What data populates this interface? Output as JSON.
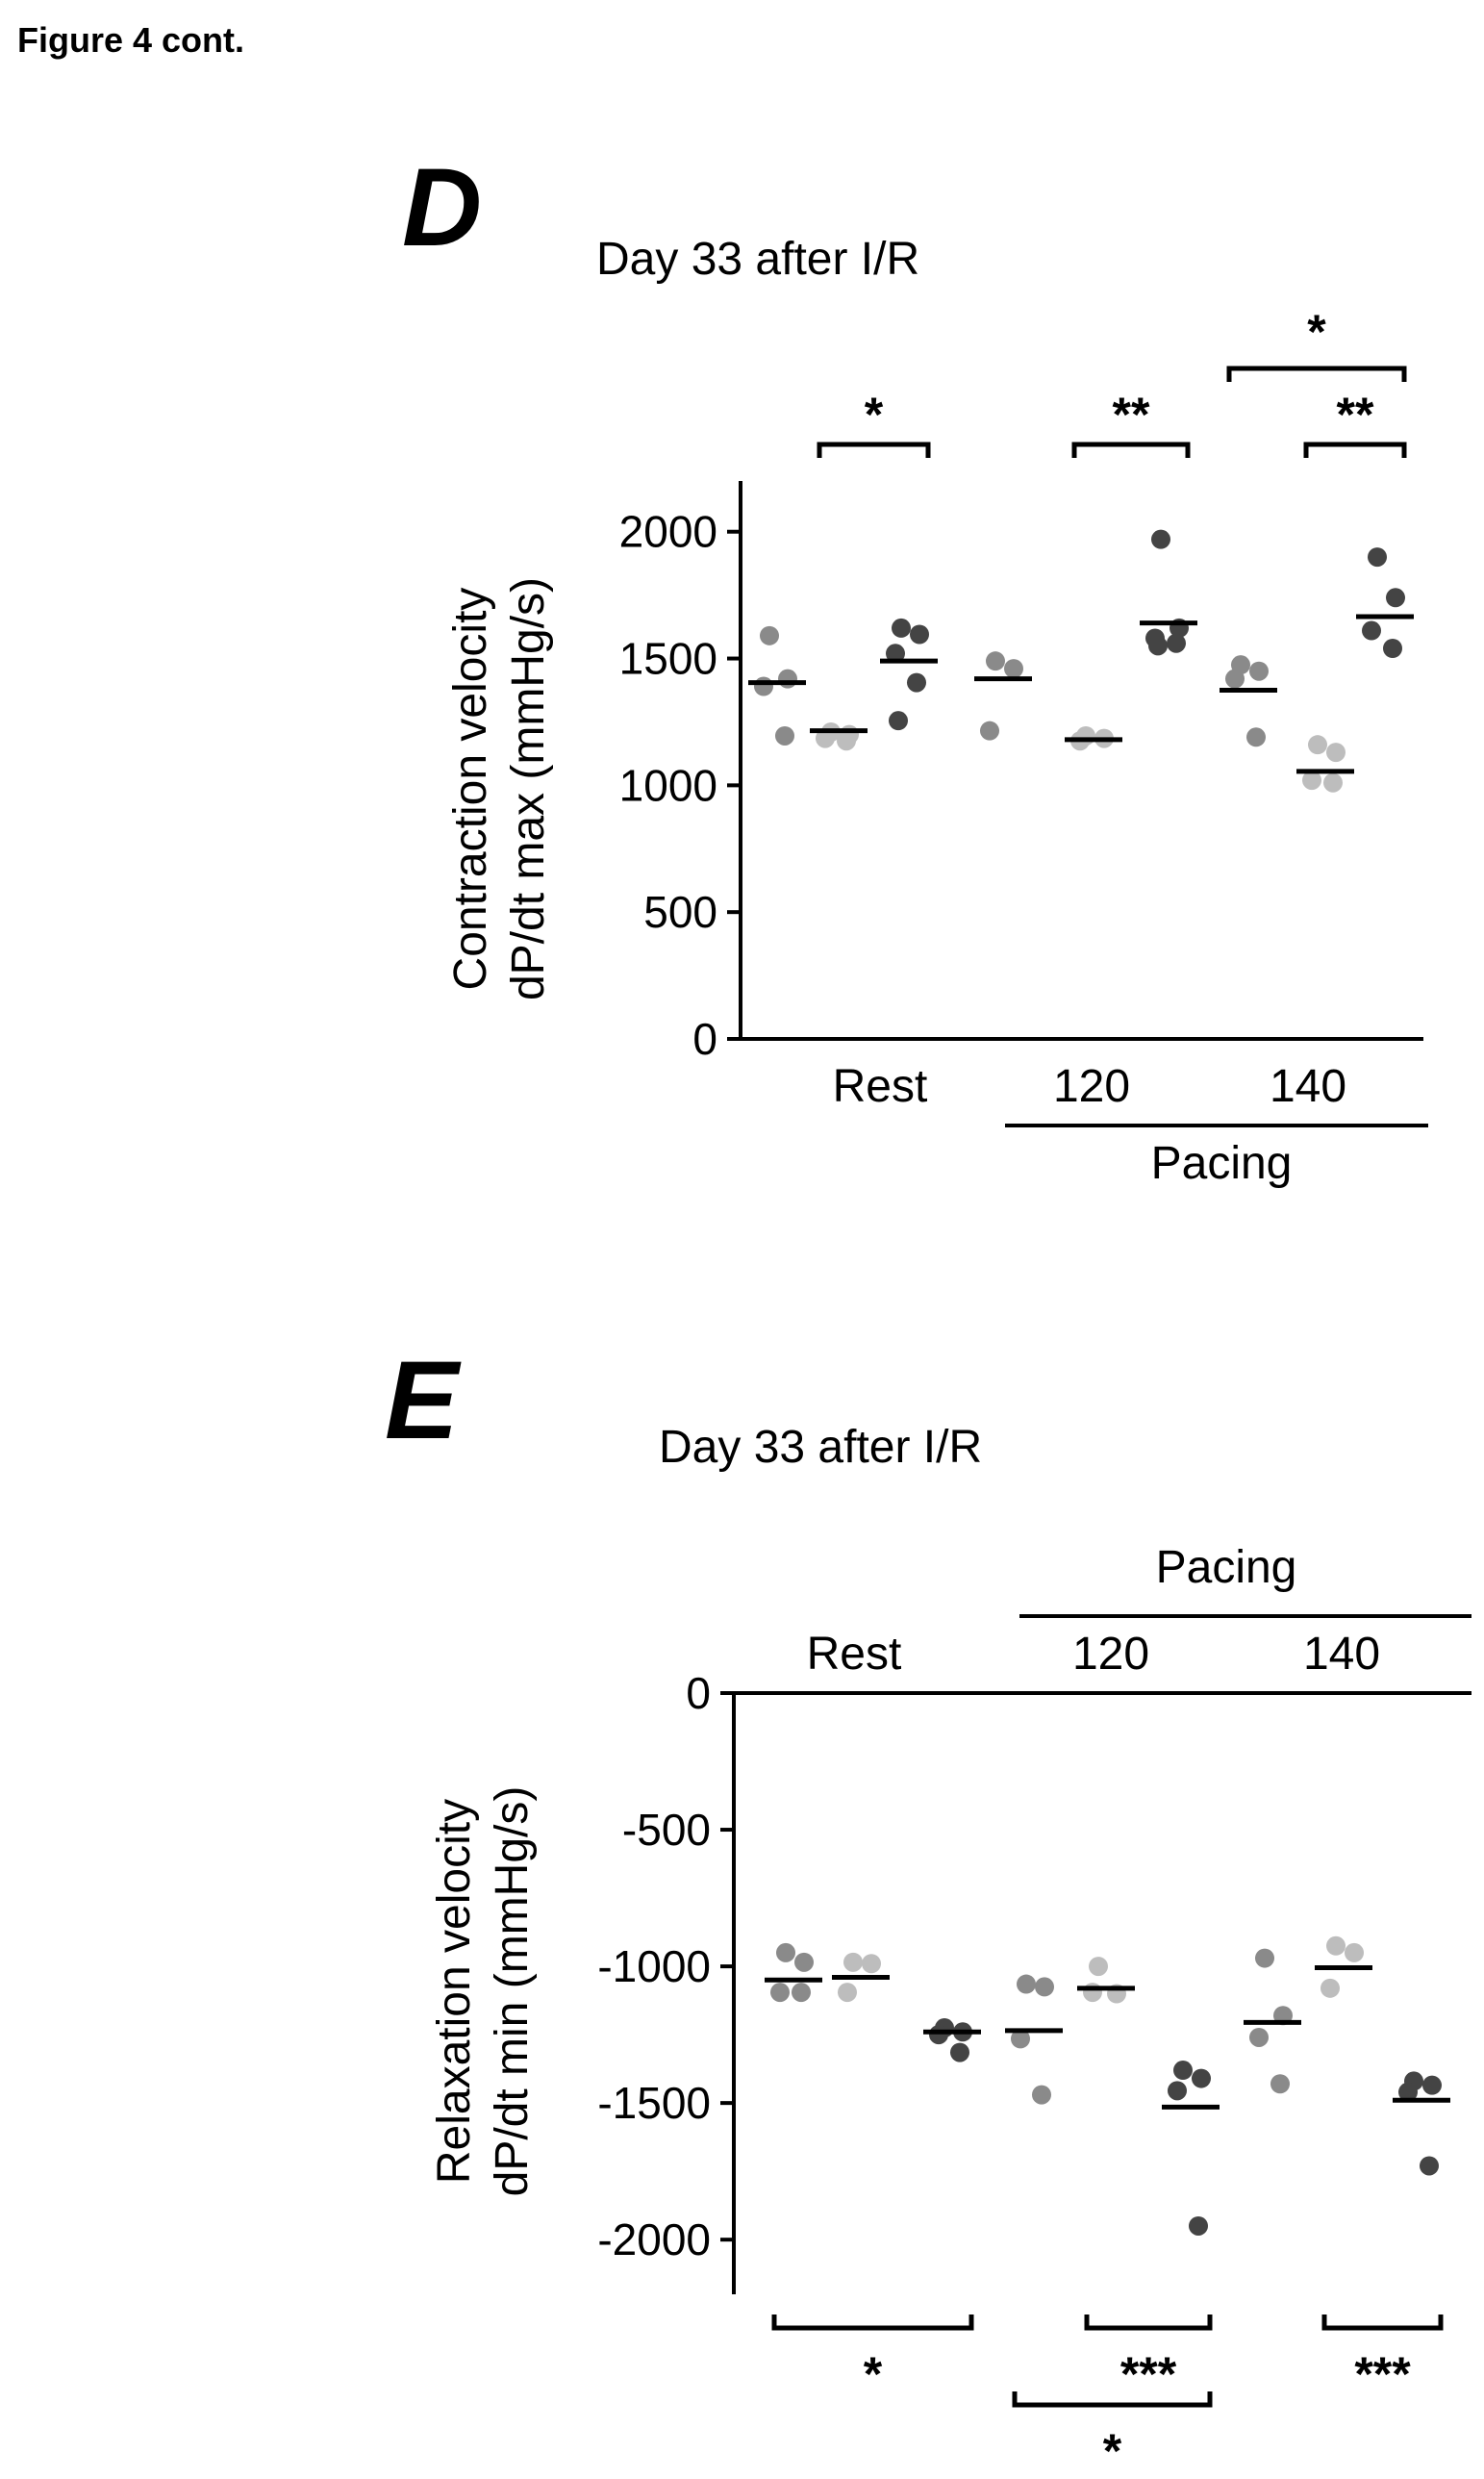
{
  "figure_label": "Figure 4 cont.",
  "colors": {
    "group_1": "#8a8a8a",
    "group_2": "#bdbdbd",
    "group_3": "#444444",
    "axis": "#000000"
  },
  "chart_data": [
    {
      "type": "scatter",
      "panel_label": "D",
      "title": "Day 33 after I/R",
      "ylabel_line1": "Contraction velocity",
      "ylabel_line2": "dP/dt max (mmHg/s)",
      "ylim": [
        0,
        2200
      ],
      "yticks": [
        "0",
        "500",
        "1000",
        "1500",
        "2000"
      ],
      "ytick_values": [
        0,
        500,
        1000,
        1500,
        2000
      ],
      "categories": [
        "Rest",
        "120",
        "140"
      ],
      "group_label": "Pacing",
      "grid": false,
      "legend": "none",
      "series": [
        {
          "group": 0,
          "points": [
            [
              0,
              1590
            ],
            [
              0,
              1420
            ],
            [
              0,
              1390
            ],
            [
              0,
              1195
            ]
          ],
          "mean": 1405
        },
        {
          "group": 1,
          "points": [
            [
              1,
              1210
            ],
            [
              1,
              1200
            ],
            [
              1,
              1185
            ],
            [
              1,
              1175
            ]
          ],
          "mean": 1215
        },
        {
          "group": 2,
          "points": [
            [
              2,
              1620
            ],
            [
              2,
              1595
            ],
            [
              2,
              1520
            ],
            [
              2,
              1405
            ],
            [
              2,
              1255
            ]
          ],
          "mean": 1490
        },
        {
          "group": 3,
          "points": [
            [
              3,
              1490
            ],
            [
              3,
              1460
            ],
            [
              3,
              1215
            ]
          ],
          "mean": 1420
        },
        {
          "group": 4,
          "points": [
            [
              4,
              1195
            ],
            [
              4,
              1185
            ],
            [
              4,
              1175
            ]
          ],
          "mean": 1180
        },
        {
          "group": 5,
          "points": [
            [
              5,
              1970
            ],
            [
              5,
              1620
            ],
            [
              5,
              1580
            ],
            [
              5,
              1560
            ],
            [
              5,
              1550
            ]
          ],
          "mean": 1640
        },
        {
          "group": 6,
          "points": [
            [
              6,
              1475
            ],
            [
              6,
              1450
            ],
            [
              6,
              1420
            ],
            [
              6,
              1190
            ]
          ],
          "mean": 1375
        },
        {
          "group": 7,
          "points": [
            [
              7,
              1160
            ],
            [
              7,
              1130
            ],
            [
              7,
              1020
            ],
            [
              7,
              1010
            ]
          ],
          "mean": 1055
        },
        {
          "group": 8,
          "points": [
            [
              8,
              1900
            ],
            [
              8,
              1740
            ],
            [
              8,
              1610
            ],
            [
              8,
              1540
            ]
          ],
          "mean": 1665
        }
      ],
      "significance": [
        {
          "from": 1,
          "to": 2,
          "label": "*",
          "side": "top"
        },
        {
          "from": 4,
          "to": 5,
          "label": "**",
          "side": "top"
        },
        {
          "from": 7,
          "to": 8,
          "label": "**",
          "side": "top"
        },
        {
          "from": 6,
          "to": 8,
          "label": "*",
          "side": "top"
        }
      ]
    },
    {
      "type": "scatter",
      "panel_label": "E",
      "title": "Day 33 after I/R",
      "ylabel_line1": "Relaxation velocity",
      "ylabel_line2": "dP/dt min (mmHg/s)",
      "ylim": [
        -2200,
        0
      ],
      "yticks": [
        "0",
        "-500",
        "-1000",
        "-1500",
        "-2000"
      ],
      "ytick_values": [
        0,
        -500,
        -1000,
        -1500,
        -2000
      ],
      "categories": [
        "Rest",
        "120",
        "140"
      ],
      "group_label": "Pacing",
      "grid": false,
      "legend": "none",
      "series": [
        {
          "group": 0,
          "points": [
            [
              0,
              -950
            ],
            [
              0,
              -985
            ],
            [
              0,
              -1095
            ],
            [
              0,
              -1095
            ]
          ],
          "mean": -1050
        },
        {
          "group": 1,
          "points": [
            [
              1,
              -985
            ],
            [
              1,
              -990
            ],
            [
              1,
              -1095
            ]
          ],
          "mean": -1040
        },
        {
          "group": 2,
          "points": [
            [
              2,
              -1225
            ],
            [
              2,
              -1240
            ],
            [
              2,
              -1250
            ],
            [
              2,
              -1315
            ]
          ],
          "mean": -1240
        },
        {
          "group": 3,
          "points": [
            [
              3,
              -1065
            ],
            [
              3,
              -1075
            ],
            [
              3,
              -1265
            ],
            [
              3,
              -1470
            ]
          ],
          "mean": -1235
        },
        {
          "group": 4,
          "points": [
            [
              4,
              -1000
            ],
            [
              4,
              -1100
            ],
            [
              4,
              -1095
            ]
          ],
          "mean": -1080
        },
        {
          "group": 5,
          "points": [
            [
              5,
              -1380
            ],
            [
              5,
              -1410
            ],
            [
              5,
              -1455
            ],
            [
              5,
              -1950
            ]
          ],
          "mean": -1515
        },
        {
          "group": 6,
          "points": [
            [
              6,
              -970
            ],
            [
              6,
              -1180
            ],
            [
              6,
              -1260
            ],
            [
              6,
              -1430
            ]
          ],
          "mean": -1205
        },
        {
          "group": 7,
          "points": [
            [
              7,
              -925
            ],
            [
              7,
              -950
            ],
            [
              7,
              -1080
            ]
          ],
          "mean": -1005
        },
        {
          "group": 8,
          "points": [
            [
              8,
              -1420
            ],
            [
              8,
              -1435
            ],
            [
              8,
              -1460
            ],
            [
              8,
              -1730
            ]
          ],
          "mean": -1490
        }
      ],
      "significance": [
        {
          "from": 0,
          "to": 2,
          "label": "*",
          "side": "bottom"
        },
        {
          "from": 4,
          "to": 5,
          "label": "***",
          "side": "bottom"
        },
        {
          "from": 7,
          "to": 8,
          "label": "***",
          "side": "bottom"
        },
        {
          "from": 3,
          "to": 5,
          "label": "*",
          "side": "bottom"
        }
      ]
    }
  ]
}
